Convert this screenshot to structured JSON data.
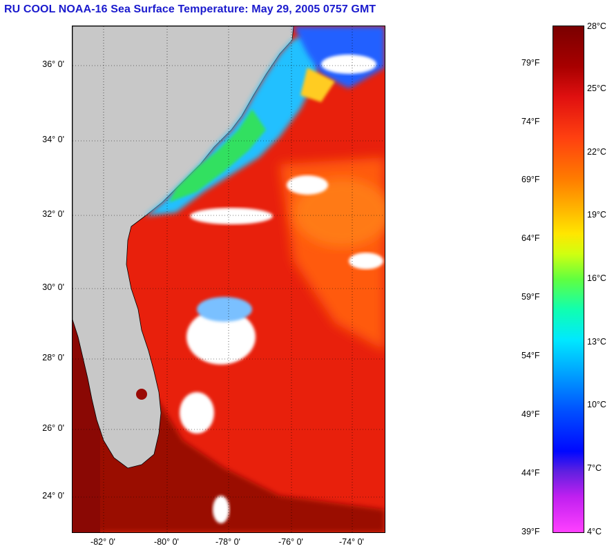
{
  "title": "RU COOL  NOAA-16  Sea Surface Temperature:  May 29, 2005 0757 GMT",
  "map": {
    "latitude_labels": [
      "36° 0'",
      "34° 0'",
      "32° 0'",
      "30° 0'",
      "28° 0'",
      "26° 0'",
      "24° 0'"
    ],
    "longitude_labels": [
      "-82° 0'",
      "-80° 0'",
      "-78° 0'",
      "-76° 0'",
      "-74° 0'"
    ],
    "colors": {
      "land": "#c8c8c8",
      "warm_water": "#e8200c",
      "gulf_stream": "#a80a06",
      "cloud": "#ffffff",
      "cool_shelf": "#20c0ff"
    }
  },
  "colorbar": {
    "fahrenheit_labels": [
      "79°F",
      "74°F",
      "69°F",
      "64°F",
      "59°F",
      "54°F",
      "49°F",
      "44°F",
      "39°F"
    ],
    "celsius_labels": [
      "28°C",
      "25°C",
      "22°C",
      "19°C",
      "16°C",
      "13°C",
      "10°C",
      "7°C",
      "4°C"
    ]
  }
}
